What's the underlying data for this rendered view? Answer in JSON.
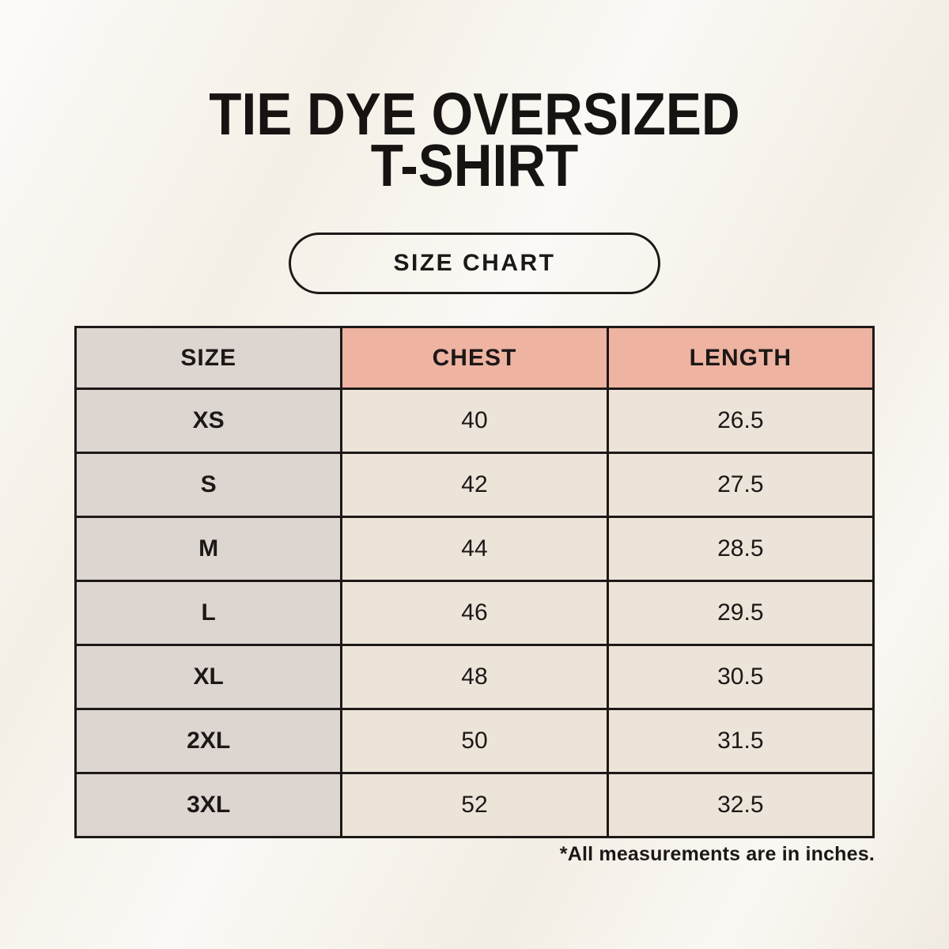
{
  "title": {
    "line1": "TIE DYE OVERSIZED",
    "line2": "T-SHIRT"
  },
  "size_chart_button": {
    "label": "SIZE CHART"
  },
  "table": {
    "headers": [
      "SIZE",
      "CHEST",
      "LENGTH"
    ],
    "rows": [
      {
        "size": "XS",
        "chest": "40",
        "length": "26.5"
      },
      {
        "size": "S",
        "chest": "42",
        "length": "27.5"
      },
      {
        "size": "M",
        "chest": "44",
        "length": "28.5"
      },
      {
        "size": "L",
        "chest": "46",
        "length": "29.5"
      },
      {
        "size": "XL",
        "chest": "48",
        "length": "30.5"
      },
      {
        "size": "2XL",
        "chest": "50",
        "length": "31.5"
      },
      {
        "size": "3XL",
        "chest": "52",
        "length": "32.5"
      }
    ]
  },
  "footnote": "*All measurements are in inches.",
  "colors": {
    "background": "#f6f2ea",
    "size_column_bg": "#ddd5d0",
    "header_accent_bg": "#efb4a1",
    "data_cell_bg": "#ece4d8",
    "border": "#1c1918",
    "text": "#1b1817"
  }
}
